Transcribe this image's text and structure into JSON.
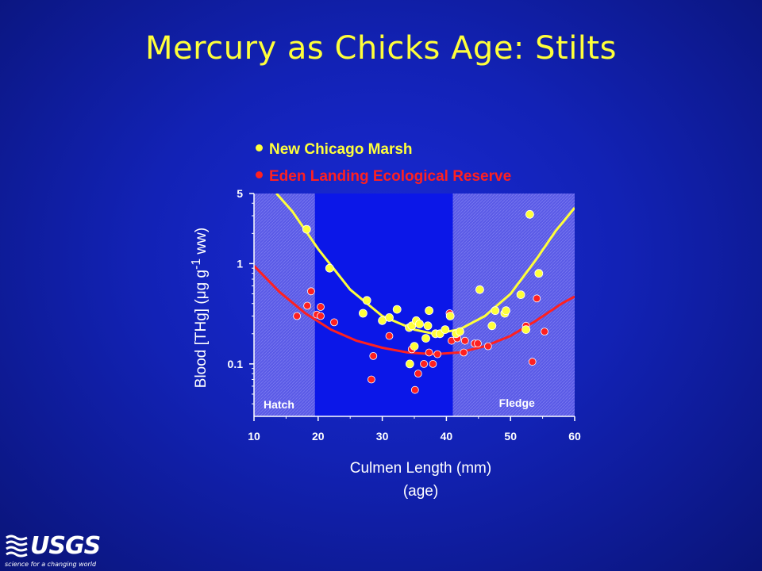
{
  "title": "Mercury as Chicks Age: Stilts",
  "logo": {
    "text": "USGS",
    "tagline": "science for a changing world"
  },
  "chart_data": {
    "type": "scatter",
    "xlabel": "Culmen Length (mm)",
    "xlabel_sub": "(age)",
    "ylabel": "Blood [THg] (μg g⁻¹ ww)",
    "xlim": [
      10,
      60
    ],
    "ylim": [
      0.03,
      5
    ],
    "yscale": "log",
    "x_ticks": [
      "10",
      "20",
      "30",
      "40",
      "50",
      "60"
    ],
    "x_tick_values": [
      10,
      20,
      30,
      40,
      50,
      60
    ],
    "y_ticks": [
      "0.1",
      "1",
      "5"
    ],
    "y_tick_values": [
      0.1,
      1,
      5
    ],
    "regions": [
      {
        "label": "Hatch",
        "x": [
          10,
          19.5
        ]
      },
      {
        "label": "Fledge",
        "x": [
          41,
          60
        ]
      }
    ],
    "colors": {
      "yellow": "#ffff3a",
      "red": "#ff2020",
      "region": "#5a5ae6",
      "background": "#0b17e8"
    },
    "series": [
      {
        "name": "New Chicago Marsh",
        "color": "#ffff3a",
        "points": [
          [
            18.2,
            2.2
          ],
          [
            21.8,
            0.9
          ],
          [
            27,
            0.32
          ],
          [
            27.6,
            0.43
          ],
          [
            30,
            0.27
          ],
          [
            31.1,
            0.29
          ],
          [
            32.3,
            0.35
          ],
          [
            34.2,
            0.23
          ],
          [
            34.6,
            0.24
          ],
          [
            35,
            0.15
          ],
          [
            35.3,
            0.27
          ],
          [
            35.8,
            0.25
          ],
          [
            36.8,
            0.18
          ],
          [
            37.1,
            0.24
          ],
          [
            37.3,
            0.34
          ],
          [
            38.3,
            0.2
          ],
          [
            39,
            0.2
          ],
          [
            39.8,
            0.22
          ],
          [
            40.6,
            0.3
          ],
          [
            41.5,
            0.2
          ],
          [
            42.1,
            0.21
          ],
          [
            45.2,
            0.55
          ],
          [
            47.1,
            0.24
          ],
          [
            47.6,
            0.34
          ],
          [
            49.1,
            0.32
          ],
          [
            49.3,
            0.34
          ],
          [
            51.6,
            0.49
          ],
          [
            52.4,
            0.22
          ],
          [
            53,
            3.1
          ],
          [
            54.4,
            0.8
          ],
          [
            34.3,
            0.1
          ]
        ],
        "fit": [
          [
            13.5,
            5
          ],
          [
            16,
            3.3
          ],
          [
            20,
            1.4
          ],
          [
            25,
            0.55
          ],
          [
            30,
            0.3
          ],
          [
            35,
            0.22
          ],
          [
            38,
            0.2
          ],
          [
            42,
            0.22
          ],
          [
            46,
            0.3
          ],
          [
            50,
            0.5
          ],
          [
            54,
            1.1
          ],
          [
            57,
            2.1
          ],
          [
            60,
            3.6
          ]
        ]
      },
      {
        "name": "Eden Landing Ecological Reserve",
        "color": "#ff2020",
        "points": [
          [
            16.7,
            0.3
          ],
          [
            18.3,
            0.38
          ],
          [
            18.9,
            0.53
          ],
          [
            19.8,
            0.31
          ],
          [
            20.4,
            0.37
          ],
          [
            20.4,
            0.3
          ],
          [
            22.5,
            0.26
          ],
          [
            28.3,
            0.07
          ],
          [
            28.6,
            0.12
          ],
          [
            31.1,
            0.19
          ],
          [
            34.6,
            0.14
          ],
          [
            35.1,
            0.055
          ],
          [
            35.6,
            0.08
          ],
          [
            36.5,
            0.1
          ],
          [
            37.3,
            0.13
          ],
          [
            37.9,
            0.1
          ],
          [
            38.6,
            0.125
          ],
          [
            40.5,
            0.32
          ],
          [
            40.8,
            0.17
          ],
          [
            41.7,
            0.18
          ],
          [
            42.7,
            0.13
          ],
          [
            42.9,
            0.17
          ],
          [
            44.4,
            0.16
          ],
          [
            44.9,
            0.16
          ],
          [
            46.5,
            0.15
          ],
          [
            52.4,
            0.24
          ],
          [
            53.4,
            0.105
          ],
          [
            54.1,
            0.45
          ],
          [
            55.3,
            0.21
          ]
        ],
        "fit": [
          [
            10,
            0.95
          ],
          [
            14,
            0.52
          ],
          [
            18,
            0.32
          ],
          [
            22,
            0.22
          ],
          [
            26,
            0.17
          ],
          [
            30,
            0.145
          ],
          [
            34,
            0.13
          ],
          [
            38,
            0.125
          ],
          [
            42,
            0.13
          ],
          [
            46,
            0.15
          ],
          [
            50,
            0.19
          ],
          [
            54,
            0.27
          ],
          [
            58,
            0.4
          ],
          [
            60,
            0.47
          ]
        ]
      }
    ]
  }
}
